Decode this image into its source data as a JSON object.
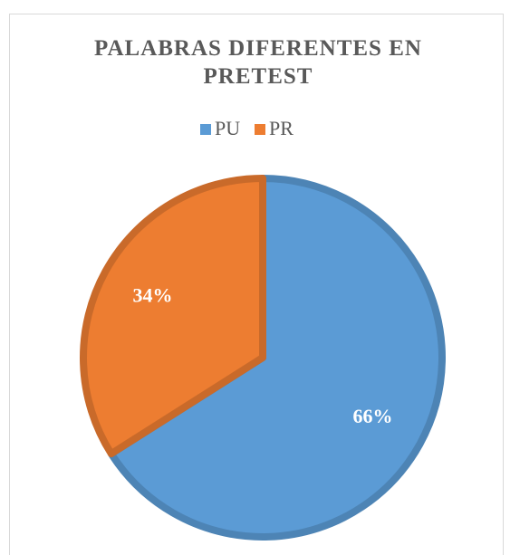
{
  "chart_data": {
    "type": "pie",
    "title": "PALABRAS DIFERENTES EN PRETEST",
    "categories": [
      "PU",
      "PR"
    ],
    "values": [
      66,
      34
    ],
    "value_labels": [
      "66%",
      "34%"
    ],
    "colors": [
      "#5b9bd5",
      "#ed7d31"
    ],
    "legend": "top"
  }
}
